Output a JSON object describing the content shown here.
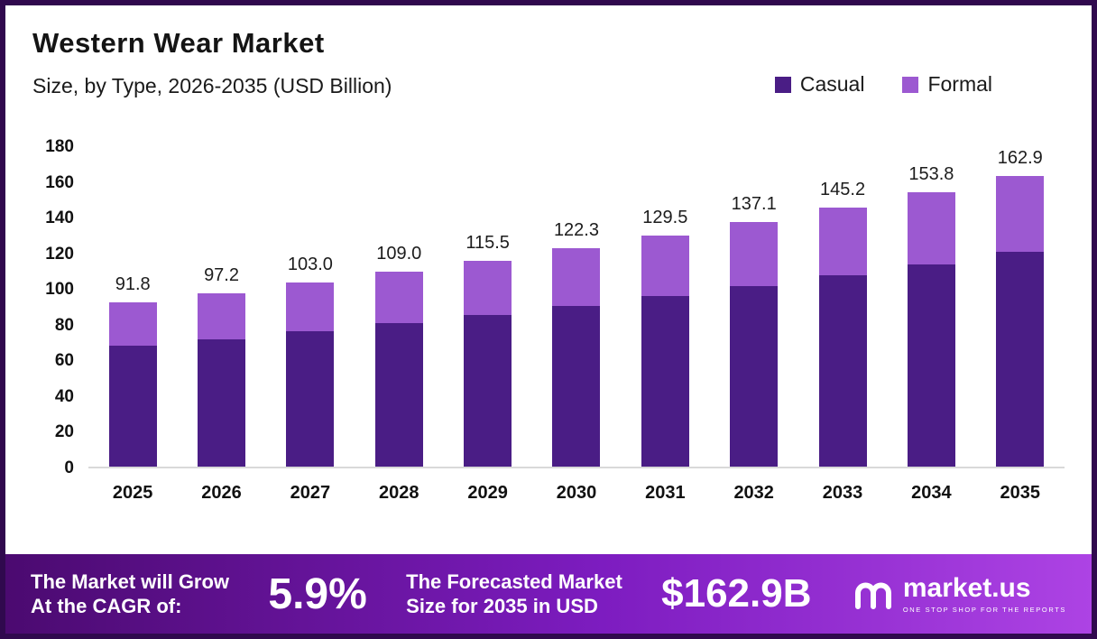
{
  "header": {
    "title": "Western Wear Market",
    "subtitle": "Size, by Type, 2026-2035 (USD Billion)"
  },
  "legend": [
    {
      "label": "Casual",
      "color": "#4A1D85"
    },
    {
      "label": "Formal",
      "color": "#9C59D1"
    }
  ],
  "chart_data": {
    "type": "bar",
    "stacked": true,
    "title": "Western Wear Market Size, by Type, 2026-2035 (USD Billion)",
    "categories": [
      "2025",
      "2026",
      "2027",
      "2028",
      "2029",
      "2030",
      "2031",
      "2032",
      "2033",
      "2034",
      "2035"
    ],
    "series": [
      {
        "name": "Casual",
        "color": "#4A1D85",
        "values": [
          68,
          71.5,
          76,
          80.5,
          85,
          90,
          95.5,
          101,
          107,
          113.5,
          120.5
        ]
      },
      {
        "name": "Formal",
        "color": "#9C59D1",
        "values": [
          23.8,
          25.7,
          27.0,
          28.5,
          30.5,
          32.3,
          34.0,
          36.1,
          38.2,
          40.3,
          42.4
        ]
      }
    ],
    "totals": [
      91.8,
      97.2,
      103.0,
      109.0,
      115.5,
      122.3,
      129.5,
      137.1,
      145.2,
      153.8,
      162.9
    ],
    "total_labels": [
      "91.8",
      "97.2",
      "103.0",
      "109.0",
      "115.5",
      "122.3",
      "129.5",
      "137.1",
      "145.2",
      "153.8",
      "162.9"
    ],
    "xlabel": "",
    "ylabel": "",
    "ylim": [
      0,
      180
    ],
    "yticks": [
      0,
      20,
      40,
      60,
      80,
      100,
      120,
      140,
      160,
      180
    ],
    "grid": false,
    "legend_position": "top-right"
  },
  "banner": {
    "growth_text_line1": "The Market will Grow",
    "growth_text_line2": "At the CAGR of:",
    "cagr_value": "5.9%",
    "forecast_text_line1": "The Forecasted Market",
    "forecast_text_line2": "Size for 2035 in USD",
    "forecast_value": "$162.9B",
    "logo_text": "market.us",
    "logo_tagline": "ONE STOP SHOP FOR THE REPORTS",
    "icons": {
      "logo": "market-us-m-icon"
    }
  },
  "colors": {
    "casual": "#4A1D85",
    "formal": "#9C59D1",
    "frame_border": "#30094e",
    "banner_gradient_start": "#4b0a70",
    "banner_gradient_end": "#ad43e4"
  }
}
